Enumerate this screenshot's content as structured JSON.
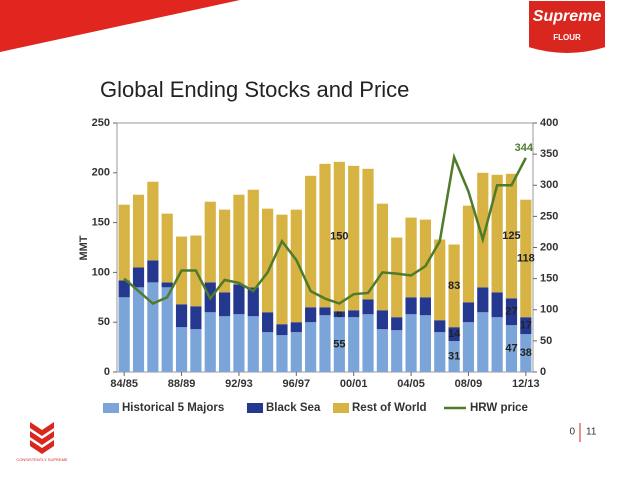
{
  "slide": {
    "title": "Global Ending Stocks and Price",
    "logo": {
      "brand": "Supreme",
      "sub": "FLOUR"
    },
    "footer_logo": "CONSISTENTLY SUPREME",
    "page": "0",
    "total": "11"
  },
  "chart_data": {
    "type": "bar",
    "stacked": true,
    "ylabel": "MMT",
    "categories": [
      "84/85",
      null,
      null,
      null,
      "88/89",
      null,
      null,
      null,
      "92/93",
      null,
      null,
      null,
      "96/97",
      null,
      null,
      null,
      "00/01",
      null,
      null,
      null,
      "04/05",
      null,
      null,
      null,
      "08/09",
      null,
      null,
      null,
      "12/13"
    ],
    "series": [
      {
        "name": "Historical 5 Majors",
        "type": "bar",
        "color": "#7ba5d9",
        "values": [
          75,
          85,
          90,
          85,
          45,
          43,
          60,
          56,
          58,
          56,
          40,
          37,
          40,
          50,
          57,
          55,
          55,
          58,
          43,
          42,
          58,
          57,
          40,
          31,
          50,
          60,
          55,
          47,
          38
        ]
      },
      {
        "name": "Black Sea",
        "type": "bar",
        "color": "#24388f",
        "values": [
          17,
          20,
          22,
          5,
          23,
          23,
          30,
          24,
          30,
          29,
          20,
          11,
          10,
          15,
          8,
          6,
          7,
          15,
          19,
          13,
          17,
          18,
          12,
          14,
          20,
          25,
          25,
          27,
          17
        ]
      },
      {
        "name": "Rest of World",
        "type": "bar",
        "color": "#d6b343",
        "values": [
          76,
          73,
          79,
          69,
          68,
          71,
          81,
          83,
          90,
          98,
          104,
          110,
          113,
          132,
          144,
          150,
          145,
          131,
          107,
          80,
          80,
          78,
          81,
          83,
          97,
          115,
          118,
          125,
          118
        ]
      },
      {
        "name": "HRW price",
        "type": "line",
        "axis": "y2",
        "color": "#4f7b2b",
        "values": [
          150,
          130,
          110,
          120,
          163,
          163,
          118,
          148,
          143,
          130,
          160,
          210,
          180,
          130,
          118,
          110,
          125,
          127,
          160,
          158,
          155,
          170,
          210,
          345,
          290,
          213,
          300,
          300,
          344
        ]
      }
    ],
    "data_labels_at": [
      15,
      23,
      27,
      28
    ],
    "line_label_at": [
      28
    ],
    "ylim": [
      0,
      250
    ],
    "yticks": [
      0,
      50,
      100,
      150,
      200,
      250
    ],
    "y2lim": [
      0,
      400
    ],
    "y2ticks": [
      0,
      50,
      100,
      150,
      200,
      250,
      300,
      350,
      400
    ],
    "legend": "bottom"
  }
}
